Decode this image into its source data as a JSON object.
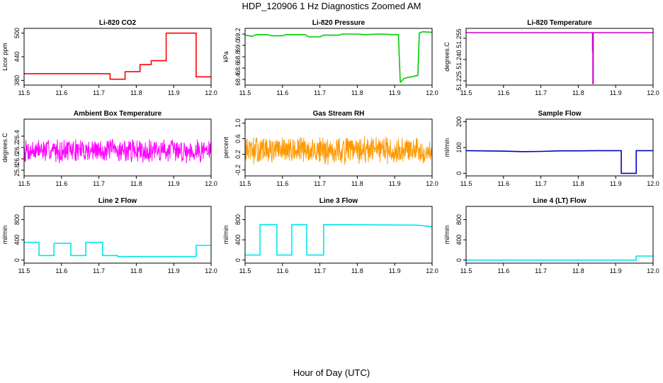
{
  "figure": {
    "title": "HDP_120906  1 Hz Diagnostics Zoomed AM",
    "xlabel": "Hour of Day (UTC)"
  },
  "chart_data": [
    {
      "type": "line",
      "title": "Li-820 CO2",
      "ylabel": "Licor ppm",
      "xlim": [
        11.5,
        12.0
      ],
      "ylim": [
        368,
        512
      ],
      "xticks": [
        11.5,
        11.6,
        11.7,
        11.8,
        11.9,
        12.0
      ],
      "xtick_labels": [
        "11.5",
        "11.6",
        "11.7",
        "11.8",
        "11.9",
        "12.0"
      ],
      "yticks": [
        380,
        440,
        500
      ],
      "ytick_labels": [
        "380",
        "440",
        "500"
      ],
      "color": "#ff0000",
      "style": "line",
      "series": [
        {
          "x": [
            11.5,
            11.73,
            11.73,
            11.77,
            11.77,
            11.81,
            11.81,
            11.84,
            11.84,
            11.88,
            11.88,
            11.96,
            11.96,
            12.0
          ],
          "y": [
            397,
            397,
            383,
            383,
            402,
            402,
            420,
            420,
            430,
            430,
            500,
            500,
            389,
            389
          ]
        }
      ]
    },
    {
      "type": "line",
      "title": "Li-820 Pressure",
      "ylabel": "kPa",
      "xlim": [
        11.5,
        12.0
      ],
      "ylim": [
        68.3,
        69.3
      ],
      "xticks": [
        11.5,
        11.6,
        11.7,
        11.8,
        11.9,
        12.0
      ],
      "xtick_labels": [
        "11.5",
        "11.6",
        "11.7",
        "11.8",
        "11.9",
        "12.0"
      ],
      "yticks": [
        68.4,
        68.6,
        68.8,
        69.0,
        69.2
      ],
      "ytick_labels": [
        "68.4",
        "68.6",
        "68.8",
        "69.0",
        "69.2"
      ],
      "color": "#00cc00",
      "style": "line",
      "series": [
        {
          "x": [
            11.5,
            11.52,
            11.53,
            11.56,
            11.57,
            11.6,
            11.61,
            11.66,
            11.67,
            11.7,
            11.71,
            11.75,
            11.76,
            11.8,
            11.82,
            11.86,
            11.9,
            11.91,
            11.915,
            11.92,
            11.925,
            11.955,
            11.962,
            11.966,
            11.975,
            12.0
          ],
          "y": [
            69.18,
            69.16,
            69.19,
            69.19,
            69.17,
            69.17,
            69.19,
            69.19,
            69.15,
            69.15,
            69.18,
            69.18,
            69.2,
            69.2,
            69.19,
            69.2,
            69.19,
            69.19,
            68.35,
            68.38,
            68.42,
            68.46,
            68.47,
            69.22,
            69.24,
            69.23
          ]
        }
      ]
    },
    {
      "type": "line",
      "title": "Li-820 Temperature",
      "ylabel": "degrees.C",
      "xlim": [
        11.5,
        12.0
      ],
      "ylim": [
        51.222,
        51.262
      ],
      "xticks": [
        11.5,
        11.6,
        11.7,
        11.8,
        11.9,
        12.0
      ],
      "xtick_labels": [
        "11.5",
        "11.6",
        "11.7",
        "11.8",
        "11.9",
        "12.0"
      ],
      "yticks": [
        51.225,
        51.24,
        51.255
      ],
      "ytick_labels": [
        "51.225",
        "51.240",
        "51.255"
      ],
      "color": "#cc00cc",
      "style": "line",
      "series": [
        {
          "x": [
            11.5,
            11.838,
            11.838,
            11.839,
            11.839,
            11.84,
            11.84,
            12.0
          ],
          "y": [
            51.259,
            51.259,
            51.246,
            51.246,
            51.223,
            51.223,
            51.259,
            51.259
          ]
        }
      ]
    },
    {
      "type": "line",
      "title": "Ambient Box Temperature",
      "ylabel": "degrees.C",
      "xlim": [
        11.5,
        12.0
      ],
      "ylim": [
        25.7,
        26.7
      ],
      "xticks": [
        11.5,
        11.6,
        11.7,
        11.8,
        11.9,
        12.0
      ],
      "xtick_labels": [
        "11.5",
        "11.6",
        "11.7",
        "11.8",
        "11.9",
        "12.0"
      ],
      "yticks": [
        25.8,
        26.0,
        26.2,
        26.4
      ],
      "ytick_labels": [
        "25.8",
        "26.0",
        "26.2",
        "26.4"
      ],
      "color": "#ff00ff",
      "style": "noise",
      "series": [
        {
          "x_start": 11.5,
          "x_end": 12.0,
          "center": 26.15,
          "spread": 0.45,
          "step": 0.001,
          "seed": 7
        }
      ]
    },
    {
      "type": "line",
      "title": "Gas Stream RH",
      "ylabel": "percent",
      "xlim": [
        11.5,
        12.0
      ],
      "ylim": [
        -0.35,
        1.1
      ],
      "xticks": [
        11.5,
        11.6,
        11.7,
        11.8,
        11.9,
        12.0
      ],
      "xtick_labels": [
        "11.5",
        "11.6",
        "11.7",
        "11.8",
        "11.9",
        "12.0"
      ],
      "yticks": [
        -0.2,
        0.2,
        0.6,
        1.0
      ],
      "ytick_labels": [
        "-0.2",
        "0.2",
        "0.6",
        "1.0"
      ],
      "color": "#ff9900",
      "style": "noise",
      "series": [
        {
          "x_start": 11.5,
          "x_end": 12.0,
          "center": 0.3,
          "spread": 0.75,
          "step": 0.0008,
          "seed": 13
        }
      ]
    },
    {
      "type": "line",
      "title": "Sample Flow",
      "ylabel": "ml/min",
      "xlim": [
        11.5,
        12.0
      ],
      "ylim": [
        -10,
        210
      ],
      "xticks": [
        11.5,
        11.6,
        11.7,
        11.8,
        11.9,
        12.0
      ],
      "xtick_labels": [
        "11.5",
        "11.6",
        "11.7",
        "11.8",
        "11.9",
        "12.0"
      ],
      "yticks": [
        0,
        100,
        200
      ],
      "ytick_labels": [
        "0",
        "100",
        "200"
      ],
      "color": "#0000cc",
      "style": "line",
      "series": [
        {
          "x": [
            11.5,
            11.6,
            11.65,
            11.7,
            11.75,
            11.8,
            11.85,
            11.915,
            11.915,
            11.955,
            11.955,
            12.0
          ],
          "y": [
            88,
            86,
            84,
            85,
            87,
            87,
            88,
            88,
            0,
            0,
            88,
            88
          ]
        }
      ]
    },
    {
      "type": "line",
      "title": "Line 2 Flow",
      "ylabel": "ml/min",
      "xlim": [
        11.5,
        12.0
      ],
      "ylim": [
        -60,
        1060
      ],
      "xticks": [
        11.5,
        11.6,
        11.7,
        11.8,
        11.9,
        12.0
      ],
      "xtick_labels": [
        "11.5",
        "11.6",
        "11.7",
        "11.8",
        "11.9",
        "12.0"
      ],
      "yticks": [
        0,
        400,
        800
      ],
      "ytick_labels": [
        "0",
        "400",
        "800"
      ],
      "color": "#00e5ee",
      "style": "line",
      "series": [
        {
          "x": [
            11.5,
            11.54,
            11.54,
            11.58,
            11.58,
            11.625,
            11.625,
            11.665,
            11.665,
            11.71,
            11.71,
            11.75,
            11.75,
            11.96,
            11.96,
            12.0
          ],
          "y": [
            350,
            350,
            90,
            90,
            330,
            330,
            90,
            90,
            350,
            350,
            90,
            90,
            70,
            70,
            290,
            290
          ]
        }
      ]
    },
    {
      "type": "line",
      "title": "Line 3 Flow",
      "ylabel": "ml/min",
      "xlim": [
        11.5,
        12.0
      ],
      "ylim": [
        -60,
        1060
      ],
      "xticks": [
        11.5,
        11.6,
        11.7,
        11.8,
        11.9,
        12.0
      ],
      "xtick_labels": [
        "11.5",
        "11.6",
        "11.7",
        "11.8",
        "11.9",
        "12.0"
      ],
      "yticks": [
        0,
        400,
        800
      ],
      "ytick_labels": [
        "0",
        "400",
        "800"
      ],
      "color": "#00e5ee",
      "style": "line",
      "series": [
        {
          "x": [
            11.5,
            11.54,
            11.54,
            11.585,
            11.585,
            11.625,
            11.625,
            11.665,
            11.665,
            11.71,
            11.71,
            11.96,
            12.0
          ],
          "y": [
            100,
            100,
            700,
            700,
            100,
            100,
            700,
            700,
            100,
            100,
            700,
            690,
            660
          ]
        }
      ]
    },
    {
      "type": "line",
      "title": "Line 4 (LT) Flow",
      "ylabel": "ml/min",
      "xlim": [
        11.5,
        12.0
      ],
      "ylim": [
        -60,
        1060
      ],
      "xticks": [
        11.5,
        11.6,
        11.7,
        11.8,
        11.9,
        12.0
      ],
      "xtick_labels": [
        "11.5",
        "11.6",
        "11.7",
        "11.8",
        "11.9",
        "12.0"
      ],
      "yticks": [
        0,
        400,
        800
      ],
      "ytick_labels": [
        "0",
        "400",
        "800"
      ],
      "color": "#00e5ee",
      "style": "line",
      "series": [
        {
          "x": [
            11.5,
            11.955,
            11.955,
            12.0
          ],
          "y": [
            0,
            0,
            80,
            80
          ]
        }
      ]
    }
  ]
}
